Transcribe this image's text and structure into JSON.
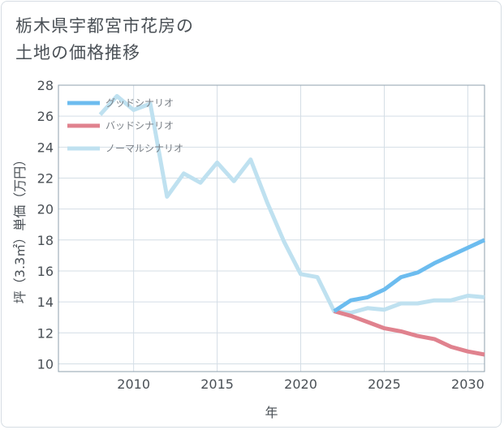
{
  "title_lines": [
    "栃木県宇都宮市花房の",
    "土地の価格推移"
  ],
  "chart_data": {
    "type": "line",
    "title": "栃木県宇都宮市花房の土地の価格推移",
    "xlabel": "年",
    "ylabel": "坪（3.3㎡）単価（万円）",
    "xlim": [
      2005.5,
      2031
    ],
    "ylim": [
      9.5,
      28
    ],
    "xticks": [
      2010,
      2015,
      2020,
      2025,
      2030
    ],
    "yticks": [
      10,
      12,
      14,
      16,
      18,
      20,
      22,
      24,
      26,
      28
    ],
    "grid": true,
    "legend_position": "top-left",
    "series": [
      {
        "name": "グッドシナリオ",
        "color": "#6cbcef",
        "x": [
          2022,
          2023,
          2024,
          2025,
          2026,
          2027,
          2028,
          2029,
          2030,
          2031
        ],
        "y": [
          13.4,
          14.1,
          14.3,
          14.8,
          15.6,
          15.9,
          16.5,
          17.0,
          17.5,
          18.0
        ]
      },
      {
        "name": "バッドシナリオ",
        "color": "#e0828e",
        "x": [
          2022,
          2023,
          2024,
          2025,
          2026,
          2027,
          2028,
          2029,
          2030,
          2031
        ],
        "y": [
          13.4,
          13.1,
          12.7,
          12.3,
          12.1,
          11.8,
          11.6,
          11.1,
          10.8,
          10.6
        ]
      },
      {
        "name": "ノーマルシナリオ",
        "color": "#bfe1f0",
        "x": [
          2008,
          2009,
          2010,
          2011,
          2012,
          2013,
          2014,
          2015,
          2016,
          2017,
          2018,
          2019,
          2020,
          2021,
          2022,
          2023,
          2024,
          2025,
          2026,
          2027,
          2028,
          2029,
          2030,
          2031
        ],
        "y": [
          26.1,
          27.3,
          26.4,
          26.8,
          20.8,
          22.3,
          21.7,
          23.0,
          21.8,
          23.2,
          20.4,
          17.9,
          15.8,
          15.6,
          13.4,
          13.3,
          13.6,
          13.5,
          13.9,
          13.9,
          14.1,
          14.1,
          14.4,
          14.3
        ]
      }
    ]
  }
}
